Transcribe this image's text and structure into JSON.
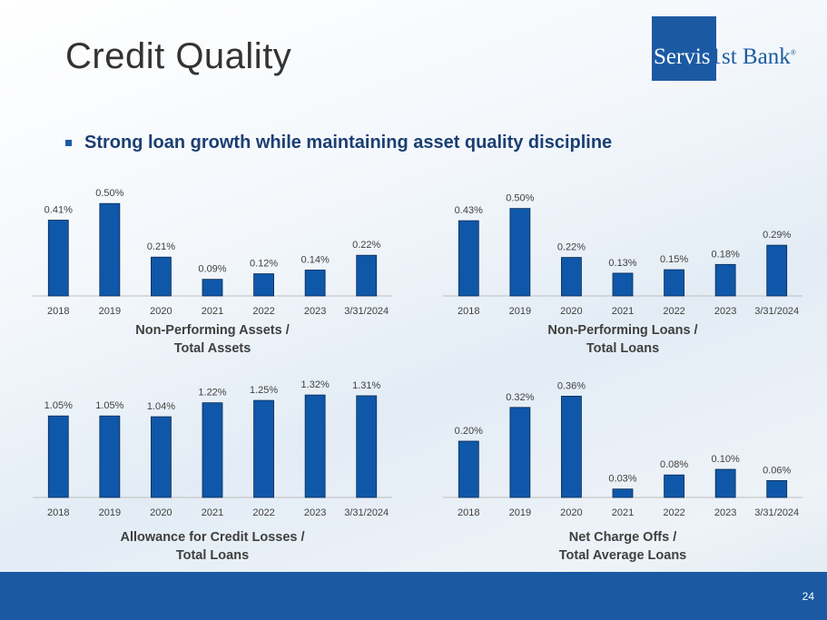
{
  "slide": {
    "title": "Credit Quality",
    "bullet": "Strong loan growth while maintaining asset quality discipline",
    "page_number": "24"
  },
  "logo": {
    "part1": "Servis",
    "part2": "1st Bank",
    "mark": "®"
  },
  "colors": {
    "bar": "#0f57a8",
    "bar_stroke": "#0a2a55",
    "footer": "#1b5aa3"
  },
  "chart_data": [
    {
      "id": "npa",
      "type": "bar",
      "title_line1": "Non-Performing Assets /",
      "title_line2": "Total Assets",
      "categories": [
        "2018",
        "2019",
        "2020",
        "2021",
        "2022",
        "2023",
        "3/31/2024"
      ],
      "values": [
        0.41,
        0.5,
        0.21,
        0.09,
        0.12,
        0.14,
        0.22
      ],
      "labels": [
        "0.41%",
        "0.50%",
        "0.21%",
        "0.09%",
        "0.12%",
        "0.14%",
        "0.22%"
      ],
      "ylim": [
        0,
        0.55
      ]
    },
    {
      "id": "npl",
      "type": "bar",
      "title_line1": "Non-Performing Loans /",
      "title_line2": "Total Loans",
      "categories": [
        "2018",
        "2019",
        "2020",
        "2021",
        "2022",
        "2023",
        "3/31/2024"
      ],
      "values": [
        0.43,
        0.5,
        0.22,
        0.13,
        0.15,
        0.18,
        0.29
      ],
      "labels": [
        "0.43%",
        "0.50%",
        "0.22%",
        "0.13%",
        "0.15%",
        "0.18%",
        "0.29%"
      ],
      "ylim": [
        0,
        0.55
      ]
    },
    {
      "id": "acl",
      "type": "bar",
      "title_line1": "Allowance for Credit Losses /",
      "title_line2": "Total Loans",
      "categories": [
        "2018",
        "2019",
        "2020",
        "2021",
        "2022",
        "2023",
        "3/31/2024"
      ],
      "values": [
        1.05,
        1.05,
        1.04,
        1.22,
        1.25,
        1.32,
        1.31
      ],
      "labels": [
        "1.05%",
        "1.05%",
        "1.04%",
        "1.22%",
        "1.25%",
        "1.32%",
        "1.31%"
      ],
      "ylim": [
        0,
        1.45
      ]
    },
    {
      "id": "nco",
      "type": "bar",
      "title_line1": "Net Charge Offs /",
      "title_line2": "Total Average Loans",
      "categories": [
        "2018",
        "2019",
        "2020",
        "2021",
        "2022",
        "2023",
        "3/31/2024"
      ],
      "values": [
        0.2,
        0.32,
        0.36,
        0.03,
        0.08,
        0.1,
        0.06
      ],
      "labels": [
        "0.20%",
        "0.32%",
        "0.36%",
        "0.03%",
        "0.08%",
        "0.10%",
        "0.06%"
      ],
      "ylim": [
        0,
        0.4
      ]
    }
  ]
}
